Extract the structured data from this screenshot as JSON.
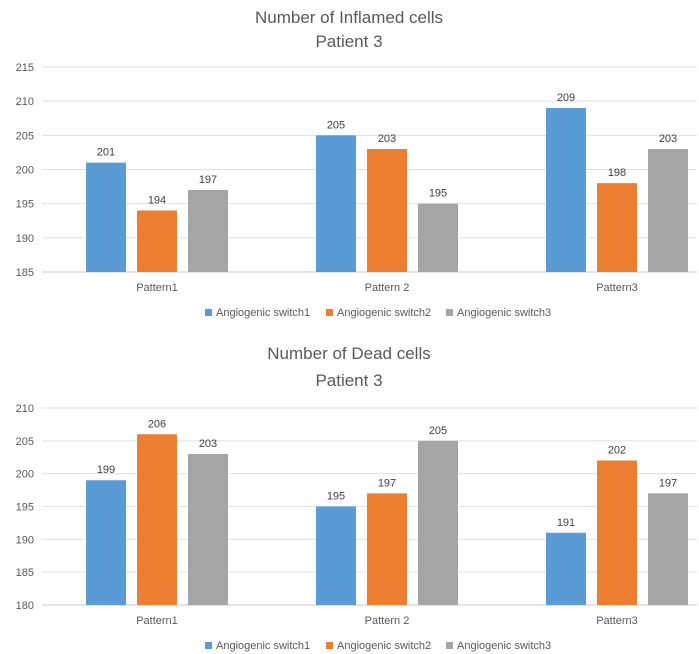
{
  "chart_data": [
    {
      "type": "bar",
      "title": "Number of Inflamed cells",
      "subtitle": "Patient 3",
      "categories": [
        "Pattern1",
        "Pattern 2",
        "Pattern3"
      ],
      "series": [
        {
          "name": "Angiogenic switch1",
          "values": [
            201,
            205,
            209
          ],
          "color": "#5b9bd5"
        },
        {
          "name": "Angiogenic switch2",
          "values": [
            194,
            203,
            198
          ],
          "color": "#ed7d31"
        },
        {
          "name": "Angiogenic switch3",
          "values": [
            197,
            195,
            203
          ],
          "color": "#a5a5a5"
        }
      ],
      "ylim": [
        185,
        215
      ],
      "yticks": [
        185,
        190,
        195,
        200,
        205,
        210,
        215
      ],
      "grid": true,
      "data_labels": true,
      "legend": "bottom"
    },
    {
      "type": "bar",
      "title": "Number of Dead cells",
      "subtitle": "Patient 3",
      "categories": [
        "Pattern1",
        "Pattern 2",
        "Pattern3"
      ],
      "series": [
        {
          "name": "Angiogenic switch1",
          "values": [
            199,
            195,
            191
          ],
          "color": "#5b9bd5"
        },
        {
          "name": "Angiogenic switch2",
          "values": [
            206,
            197,
            202
          ],
          "color": "#ed7d31"
        },
        {
          "name": "Angiogenic switch3",
          "values": [
            203,
            205,
            197
          ],
          "color": "#a5a5a5"
        }
      ],
      "ylim": [
        180,
        210
      ],
      "yticks": [
        180,
        185,
        190,
        195,
        200,
        205,
        210
      ],
      "grid": true,
      "data_labels": true,
      "legend": "bottom"
    }
  ]
}
